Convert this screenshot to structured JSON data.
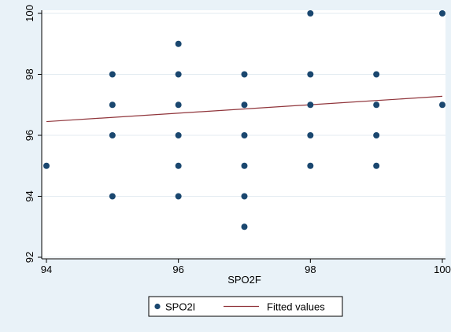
{
  "chart_data": {
    "type": "scatter",
    "title": "",
    "xlabel": "SPO2F",
    "ylabel": "",
    "xlim": [
      94,
      100
    ],
    "ylim": [
      92,
      100
    ],
    "xticks": [
      94,
      96,
      98,
      100
    ],
    "yticks": [
      92,
      94,
      96,
      98,
      100
    ],
    "grid": "horizontal",
    "legend_position": "bottom",
    "colors": {
      "page_background": "#e9f2f8",
      "plot_background": "#ffffff",
      "marker": "#1a476f",
      "fit_line": "#90353b",
      "grid": "#e3ebf1",
      "axis": "#000000"
    },
    "series": [
      {
        "name": "SPO2I",
        "kind": "scatter",
        "points": [
          [
            94,
            95
          ],
          [
            95,
            94
          ],
          [
            95,
            96
          ],
          [
            95,
            97
          ],
          [
            95,
            98
          ],
          [
            96,
            94
          ],
          [
            96,
            95
          ],
          [
            96,
            96
          ],
          [
            96,
            97
          ],
          [
            96,
            98
          ],
          [
            96,
            99
          ],
          [
            97,
            93
          ],
          [
            97,
            94
          ],
          [
            97,
            95
          ],
          [
            97,
            96
          ],
          [
            97,
            97
          ],
          [
            97,
            98
          ],
          [
            98,
            95
          ],
          [
            98,
            96
          ],
          [
            98,
            97
          ],
          [
            98,
            98
          ],
          [
            98,
            100
          ],
          [
            99,
            95
          ],
          [
            99,
            96
          ],
          [
            99,
            97
          ],
          [
            99,
            98
          ],
          [
            100,
            97
          ],
          [
            100,
            100
          ]
        ]
      },
      {
        "name": "Fitted values",
        "kind": "line",
        "points": [
          [
            94,
            96.45
          ],
          [
            100,
            97.28
          ]
        ]
      }
    ]
  }
}
